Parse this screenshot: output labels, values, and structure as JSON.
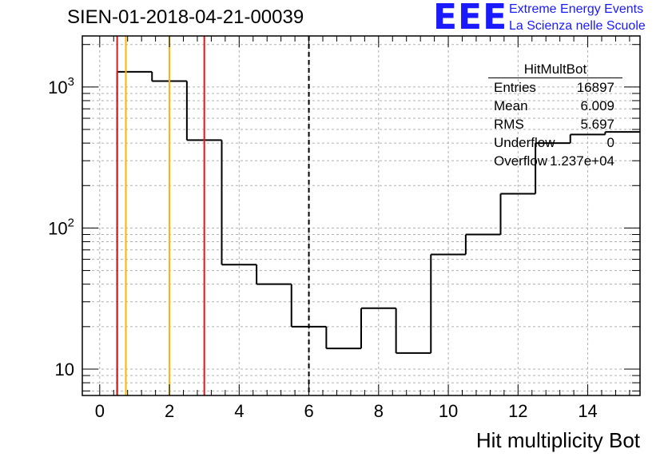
{
  "header": {
    "run_id": "SIEN-01-2018-04-21-00039",
    "logo_text": "EEE",
    "logo_line1": "Extreme Energy Events",
    "logo_line2": "La Scienza nelle Scuole"
  },
  "stats": {
    "title": "HitMultBot",
    "rows": [
      {
        "label": "Entries",
        "value": "16897"
      },
      {
        "label": "Mean",
        "value": "6.009"
      },
      {
        "label": "RMS",
        "value": "5.697"
      },
      {
        "label": "Underflow",
        "value": "0"
      },
      {
        "label": "Overflow",
        "value": "1.237e+04"
      }
    ]
  },
  "colors": {
    "red_line": "#e8141b",
    "orange_line": "#ffb400",
    "histogram": "#000000",
    "grid": "#b0b0b0",
    "logo": "#1a1aff"
  },
  "chart_data": {
    "type": "histogram",
    "xlabel": "Hit multiplicity Bot",
    "ylabel": "",
    "log_y": true,
    "xlim": [
      -0.5,
      15.5
    ],
    "ylim": [
      6.5,
      2300
    ],
    "grid": true,
    "x_ticks": [
      0,
      2,
      4,
      6,
      8,
      10,
      12,
      14
    ],
    "y_tick_labels": [
      {
        "value": 10,
        "base": "10",
        "exp": ""
      },
      {
        "value": 100,
        "base": "10",
        "exp": "2"
      },
      {
        "value": 1000,
        "base": "10",
        "exp": "3"
      }
    ],
    "bins": [
      {
        "low": -0.5,
        "high": 0.5,
        "value": 0
      },
      {
        "low": 0.5,
        "high": 1.5,
        "value": 1280
      },
      {
        "low": 1.5,
        "high": 2.5,
        "value": 1100
      },
      {
        "low": 2.5,
        "high": 3.5,
        "value": 420
      },
      {
        "low": 3.5,
        "high": 4.5,
        "value": 55
      },
      {
        "low": 4.5,
        "high": 5.5,
        "value": 40
      },
      {
        "low": 5.5,
        "high": 6.5,
        "value": 20
      },
      {
        "low": 6.5,
        "high": 7.5,
        "value": 14
      },
      {
        "low": 7.5,
        "high": 8.5,
        "value": 27
      },
      {
        "low": 8.5,
        "high": 9.5,
        "value": 13
      },
      {
        "low": 9.5,
        "high": 10.5,
        "value": 65
      },
      {
        "low": 10.5,
        "high": 11.5,
        "value": 90
      },
      {
        "low": 11.5,
        "high": 12.5,
        "value": 175
      },
      {
        "low": 12.5,
        "high": 13.5,
        "value": 400
      },
      {
        "low": 13.5,
        "high": 14.5,
        "value": 460
      },
      {
        "low": 14.5,
        "high": 15.5,
        "value": 480
      }
    ],
    "vertical_lines": [
      {
        "x": 0.5,
        "color": "red",
        "style": "solid"
      },
      {
        "x": 3.0,
        "color": "red",
        "style": "solid"
      },
      {
        "x": 0.75,
        "color": "orange",
        "style": "solid"
      },
      {
        "x": 2.0,
        "color": "orange",
        "style": "solid"
      },
      {
        "x": 6.0,
        "color": "black",
        "style": "dashed"
      }
    ]
  }
}
